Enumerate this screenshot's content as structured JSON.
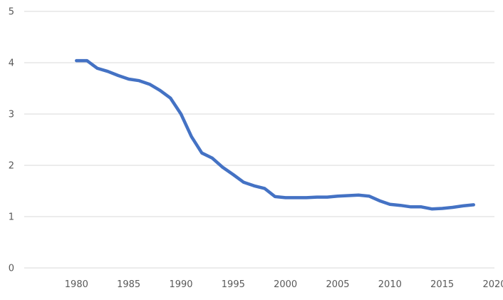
{
  "chart_data": {
    "type": "line",
    "xlim": [
      1975,
      2020
    ],
    "ylim": [
      0,
      5
    ],
    "x_ticks": [
      "1980",
      "1985",
      "1990",
      "1995",
      "2000",
      "2005",
      "2010",
      "2015",
      "2020"
    ],
    "y_ticks": [
      "0",
      "1",
      "2",
      "3",
      "4",
      "5"
    ],
    "grid": true,
    "series": [
      {
        "color": "#4472C4",
        "x": [
          1980,
          1981,
          1982,
          1983,
          1984,
          1985,
          1986,
          1987,
          1988,
          1989,
          1990,
          1991,
          1992,
          1993,
          1994,
          1995,
          1996,
          1997,
          1998,
          1999,
          2000,
          2001,
          2002,
          2003,
          2004,
          2005,
          2006,
          2007,
          2008,
          2009,
          2010,
          2011,
          2012,
          2013,
          2014,
          2015,
          2016,
          2017,
          2018
        ],
        "y": [
          4.04,
          4.04,
          3.89,
          3.83,
          3.75,
          3.68,
          3.65,
          3.58,
          3.46,
          3.31,
          3.0,
          2.56,
          2.24,
          2.14,
          1.96,
          1.82,
          1.67,
          1.6,
          1.55,
          1.39,
          1.37,
          1.37,
          1.37,
          1.38,
          1.38,
          1.4,
          1.41,
          1.42,
          1.4,
          1.31,
          1.24,
          1.22,
          1.19,
          1.19,
          1.15,
          1.16,
          1.18,
          1.21,
          1.23
        ]
      }
    ]
  }
}
